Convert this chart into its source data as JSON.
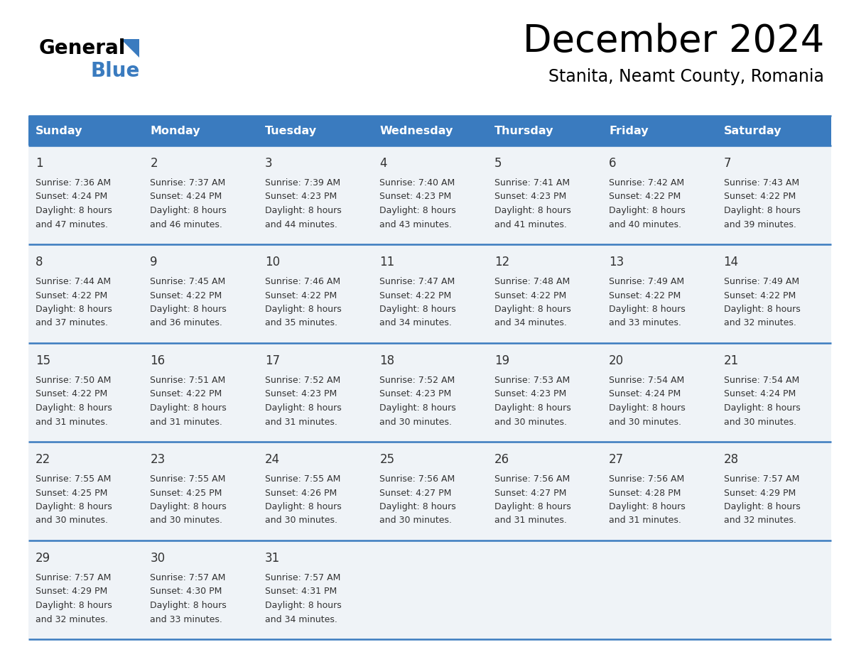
{
  "title": "December 2024",
  "subtitle": "Stanita, Neamt County, Romania",
  "days_of_week": [
    "Sunday",
    "Monday",
    "Tuesday",
    "Wednesday",
    "Thursday",
    "Friday",
    "Saturday"
  ],
  "header_bg": "#3a7bbf",
  "header_text": "#ffffff",
  "row_bg": "#eff3f7",
  "border_color": "#3a7bbf",
  "day_number_color": "#333333",
  "cell_text_color": "#333333",
  "calendar_data": [
    [
      {
        "day": 1,
        "sunrise": "7:36 AM",
        "sunset": "4:24 PM",
        "daylight_min": "47 minutes."
      },
      {
        "day": 2,
        "sunrise": "7:37 AM",
        "sunset": "4:24 PM",
        "daylight_min": "46 minutes."
      },
      {
        "day": 3,
        "sunrise": "7:39 AM",
        "sunset": "4:23 PM",
        "daylight_min": "44 minutes."
      },
      {
        "day": 4,
        "sunrise": "7:40 AM",
        "sunset": "4:23 PM",
        "daylight_min": "43 minutes."
      },
      {
        "day": 5,
        "sunrise": "7:41 AM",
        "sunset": "4:23 PM",
        "daylight_min": "41 minutes."
      },
      {
        "day": 6,
        "sunrise": "7:42 AM",
        "sunset": "4:22 PM",
        "daylight_min": "40 minutes."
      },
      {
        "day": 7,
        "sunrise": "7:43 AM",
        "sunset": "4:22 PM",
        "daylight_min": "39 minutes."
      }
    ],
    [
      {
        "day": 8,
        "sunrise": "7:44 AM",
        "sunset": "4:22 PM",
        "daylight_min": "37 minutes."
      },
      {
        "day": 9,
        "sunrise": "7:45 AM",
        "sunset": "4:22 PM",
        "daylight_min": "36 minutes."
      },
      {
        "day": 10,
        "sunrise": "7:46 AM",
        "sunset": "4:22 PM",
        "daylight_min": "35 minutes."
      },
      {
        "day": 11,
        "sunrise": "7:47 AM",
        "sunset": "4:22 PM",
        "daylight_min": "34 minutes."
      },
      {
        "day": 12,
        "sunrise": "7:48 AM",
        "sunset": "4:22 PM",
        "daylight_min": "34 minutes."
      },
      {
        "day": 13,
        "sunrise": "7:49 AM",
        "sunset": "4:22 PM",
        "daylight_min": "33 minutes."
      },
      {
        "day": 14,
        "sunrise": "7:49 AM",
        "sunset": "4:22 PM",
        "daylight_min": "32 minutes."
      }
    ],
    [
      {
        "day": 15,
        "sunrise": "7:50 AM",
        "sunset": "4:22 PM",
        "daylight_min": "31 minutes."
      },
      {
        "day": 16,
        "sunrise": "7:51 AM",
        "sunset": "4:22 PM",
        "daylight_min": "31 minutes."
      },
      {
        "day": 17,
        "sunrise": "7:52 AM",
        "sunset": "4:23 PM",
        "daylight_min": "31 minutes."
      },
      {
        "day": 18,
        "sunrise": "7:52 AM",
        "sunset": "4:23 PM",
        "daylight_min": "30 minutes."
      },
      {
        "day": 19,
        "sunrise": "7:53 AM",
        "sunset": "4:23 PM",
        "daylight_min": "30 minutes."
      },
      {
        "day": 20,
        "sunrise": "7:54 AM",
        "sunset": "4:24 PM",
        "daylight_min": "30 minutes."
      },
      {
        "day": 21,
        "sunrise": "7:54 AM",
        "sunset": "4:24 PM",
        "daylight_min": "30 minutes."
      }
    ],
    [
      {
        "day": 22,
        "sunrise": "7:55 AM",
        "sunset": "4:25 PM",
        "daylight_min": "30 minutes."
      },
      {
        "day": 23,
        "sunrise": "7:55 AM",
        "sunset": "4:25 PM",
        "daylight_min": "30 minutes."
      },
      {
        "day": 24,
        "sunrise": "7:55 AM",
        "sunset": "4:26 PM",
        "daylight_min": "30 minutes."
      },
      {
        "day": 25,
        "sunrise": "7:56 AM",
        "sunset": "4:27 PM",
        "daylight_min": "30 minutes."
      },
      {
        "day": 26,
        "sunrise": "7:56 AM",
        "sunset": "4:27 PM",
        "daylight_min": "31 minutes."
      },
      {
        "day": 27,
        "sunrise": "7:56 AM",
        "sunset": "4:28 PM",
        "daylight_min": "31 minutes."
      },
      {
        "day": 28,
        "sunrise": "7:57 AM",
        "sunset": "4:29 PM",
        "daylight_min": "32 minutes."
      }
    ],
    [
      {
        "day": 29,
        "sunrise": "7:57 AM",
        "sunset": "4:29 PM",
        "daylight_min": "32 minutes."
      },
      {
        "day": 30,
        "sunrise": "7:57 AM",
        "sunset": "4:30 PM",
        "daylight_min": "33 minutes."
      },
      {
        "day": 31,
        "sunrise": "7:57 AM",
        "sunset": "4:31 PM",
        "daylight_min": "34 minutes."
      },
      null,
      null,
      null,
      null
    ]
  ]
}
